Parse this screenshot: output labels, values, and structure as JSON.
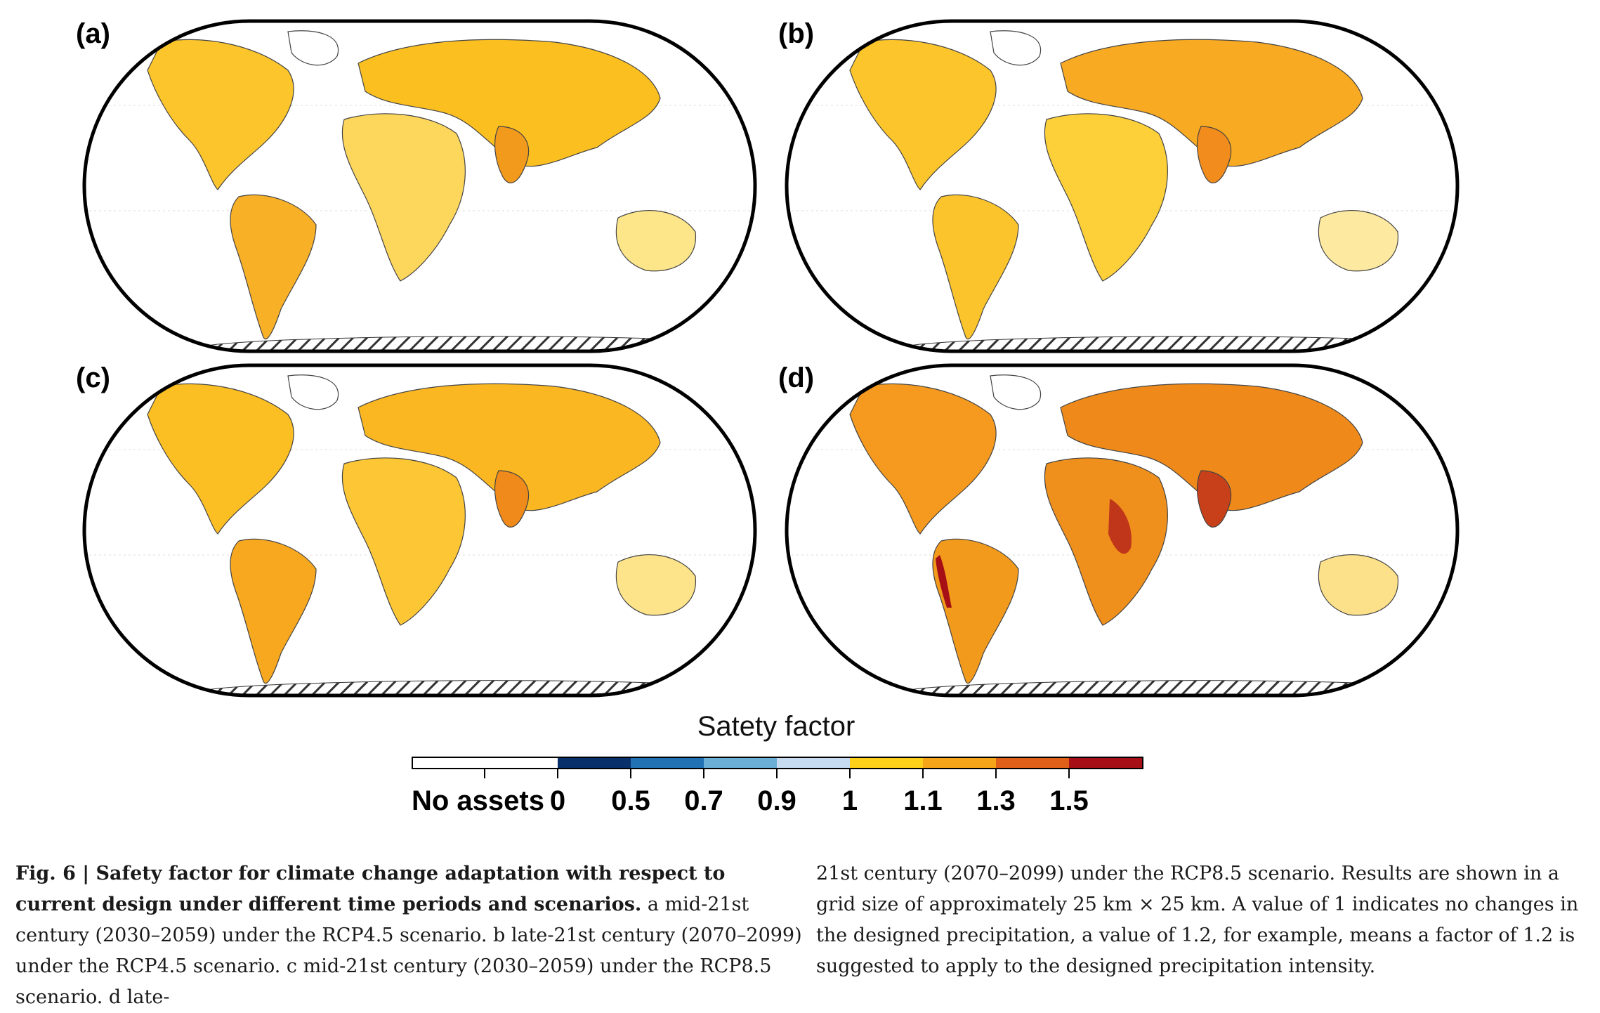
{
  "figure": {
    "panels": [
      {
        "label": "(a)",
        "period": "mid-21st century (2030–2059)",
        "scenario": "RCP4.5"
      },
      {
        "label": "(b)",
        "period": "late-21st century (2070–2099)",
        "scenario": "RCP4.5"
      },
      {
        "label": "(c)",
        "period": "mid-21st century (2030–2059)",
        "scenario": "RCP8.5"
      },
      {
        "label": "(d)",
        "period": "late-21st century (2070–2099)",
        "scenario": "RCP8.5"
      }
    ],
    "legend": {
      "title": "Satety factor",
      "categories": [
        "No assets",
        "0",
        "0.5",
        "0.7",
        "0.9",
        "1",
        "1.1",
        "1.3",
        "1.5"
      ],
      "colors": {
        "no_assets": "#ffffff",
        "0-0.5": "#08306b",
        "0.5-0.7": "#2171b5",
        "0.7-0.9": "#6baed6",
        "0.9-1": "#c6dbef",
        "1-1.1": "#fdd11a",
        "1.1-1.3": "#f7a518",
        "1.3-1.5": "#e0601a",
        "1.5+": "#a50f15"
      }
    }
  },
  "caption": {
    "fig_label": "Fig. 6 | Safety factor for climate change adaptation with respect to current design under different time periods and scenarios.",
    "left_text": " a mid-21st century (2030–2059) under the RCP4.5 scenario. b late-21st century (2070–2099) under the RCP4.5 scenario. c mid-21st century (2030–2059) under the RCP8.5 scenario. d late-",
    "right_text": "21st century (2070–2099) under the RCP8.5 scenario. Results are shown in a grid size of approximately 25 km × 25 km. A value of 1 indicates no changes in the designed precipitation, a value of 1.2, for example, means a factor of 1.2 is suggested to apply to the designed precipitation intensity."
  }
}
